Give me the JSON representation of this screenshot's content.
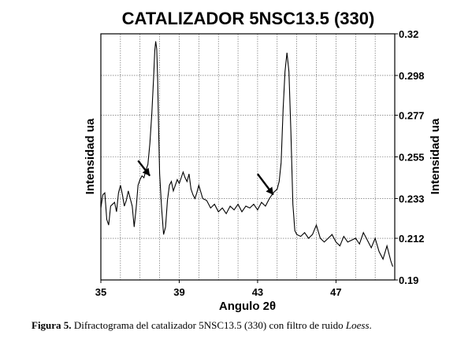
{
  "chart_data": {
    "type": "line",
    "title": "CATALIZADOR 5NSC13.5 (330)",
    "xlabel": "Angulo 2θ",
    "ylabel_left": "Intensidad ua",
    "ylabel_right": "Intensidad ua",
    "xlim": [
      35,
      50
    ],
    "ylim": [
      0.19,
      0.32
    ],
    "x_ticks": [
      35,
      39,
      43,
      47
    ],
    "x_tick_labels": [
      "35",
      "39",
      "43",
      "47"
    ],
    "y_ticks": [
      0.19,
      0.212,
      0.233,
      0.255,
      0.277,
      0.298,
      0.32
    ],
    "y_tick_labels": [
      "0.19",
      "0.212",
      "0.233",
      "0.255",
      "0.277",
      "0.298",
      "0.32"
    ],
    "grid": true,
    "series": [
      {
        "x": [
          35.0,
          35.1,
          35.2,
          35.3,
          35.4,
          35.5,
          35.6,
          35.7,
          35.8,
          35.9,
          36.0,
          36.1,
          36.2,
          36.3,
          36.4,
          36.5,
          36.6,
          36.7,
          36.8,
          36.9,
          37.0,
          37.1,
          37.2,
          37.3,
          37.4,
          37.5,
          37.6,
          37.7,
          37.75,
          37.8,
          37.85,
          37.9,
          37.95,
          38.0,
          38.1,
          38.2,
          38.3,
          38.4,
          38.5,
          38.6,
          38.7,
          38.8,
          38.9,
          39.0,
          39.1,
          39.2,
          39.3,
          39.4,
          39.5,
          39.6,
          39.7,
          39.8,
          39.9,
          40.0,
          40.2,
          40.4,
          40.6,
          40.8,
          41.0,
          41.2,
          41.4,
          41.6,
          41.8,
          42.0,
          42.2,
          42.4,
          42.6,
          42.8,
          43.0,
          43.2,
          43.4,
          43.6,
          43.8,
          44.0,
          44.1,
          44.2,
          44.3,
          44.4,
          44.5,
          44.6,
          44.7,
          44.8,
          44.9,
          45.0,
          45.2,
          45.4,
          45.6,
          45.8,
          46.0,
          46.2,
          46.4,
          46.6,
          46.8,
          47.0,
          47.2,
          47.4,
          47.6,
          47.8,
          48.0,
          48.2,
          48.4,
          48.6,
          48.8,
          49.0,
          49.2,
          49.4,
          49.6,
          49.8,
          49.9
        ],
        "y": [
          0.228,
          0.235,
          0.236,
          0.222,
          0.219,
          0.229,
          0.23,
          0.231,
          0.226,
          0.236,
          0.24,
          0.235,
          0.229,
          0.232,
          0.237,
          0.233,
          0.229,
          0.218,
          0.228,
          0.24,
          0.243,
          0.245,
          0.244,
          0.248,
          0.251,
          0.262,
          0.278,
          0.298,
          0.311,
          0.316,
          0.312,
          0.296,
          0.268,
          0.246,
          0.228,
          0.214,
          0.218,
          0.232,
          0.24,
          0.242,
          0.237,
          0.24,
          0.243,
          0.241,
          0.244,
          0.247,
          0.244,
          0.242,
          0.246,
          0.238,
          0.235,
          0.233,
          0.236,
          0.24,
          0.233,
          0.232,
          0.228,
          0.23,
          0.226,
          0.228,
          0.225,
          0.229,
          0.227,
          0.23,
          0.226,
          0.229,
          0.228,
          0.23,
          0.227,
          0.231,
          0.229,
          0.233,
          0.236,
          0.238,
          0.242,
          0.252,
          0.28,
          0.3,
          0.31,
          0.3,
          0.268,
          0.23,
          0.216,
          0.214,
          0.213,
          0.215,
          0.212,
          0.214,
          0.219,
          0.212,
          0.21,
          0.212,
          0.214,
          0.21,
          0.208,
          0.213,
          0.21,
          0.211,
          0.212,
          0.209,
          0.215,
          0.211,
          0.207,
          0.212,
          0.205,
          0.201,
          0.208,
          0.2,
          0.197
        ],
        "color": "#000000"
      }
    ],
    "annotations": [
      {
        "type": "arrow",
        "from": [
          36.9,
          0.253
        ],
        "to": [
          37.5,
          0.245
        ]
      },
      {
        "type": "arrow",
        "from": [
          43.0,
          0.246
        ],
        "to": [
          43.8,
          0.235
        ]
      }
    ]
  },
  "caption": {
    "label": "Figura 5.",
    "text": " Difractograma del catalizador 5NSC13.5 (330) con filtro de ruido ",
    "italic": "Loess",
    "end": "."
  }
}
